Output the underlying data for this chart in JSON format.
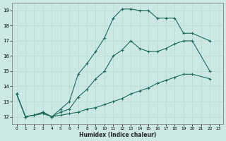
{
  "xlabel": "Humidex (Indice chaleur)",
  "bg_color": "#cce8e4",
  "grid_color": "#b8d8d4",
  "line_color": "#1a6b5a",
  "xlim": [
    -0.5,
    23.5
  ],
  "ylim": [
    11.5,
    19.5
  ],
  "xticks": [
    0,
    1,
    2,
    3,
    4,
    5,
    6,
    7,
    8,
    9,
    10,
    11,
    12,
    13,
    14,
    15,
    16,
    17,
    18,
    19,
    20,
    21,
    22,
    23
  ],
  "yticks": [
    12,
    13,
    14,
    15,
    16,
    17,
    18,
    19
  ],
  "line1_x": [
    0,
    1,
    2,
    3,
    4,
    5,
    6,
    7,
    8,
    9,
    10,
    11,
    12,
    13,
    14,
    15,
    16,
    17,
    18,
    19,
    20,
    22
  ],
  "line1_y": [
    13.5,
    12.0,
    12.1,
    12.3,
    12.0,
    12.5,
    13.0,
    14.8,
    15.5,
    16.3,
    17.2,
    18.5,
    19.1,
    19.1,
    19.0,
    19.0,
    18.5,
    18.5,
    18.5,
    17.5,
    17.5,
    17.0
  ],
  "line2_x": [
    0,
    1,
    2,
    3,
    4,
    5,
    6,
    7,
    8,
    9,
    10,
    11,
    12,
    13,
    14,
    15,
    16,
    17,
    18,
    19,
    20,
    22
  ],
  "line2_y": [
    13.5,
    12.0,
    12.1,
    12.3,
    12.0,
    12.3,
    12.5,
    13.3,
    13.8,
    14.5,
    15.0,
    16.0,
    16.4,
    17.0,
    16.5,
    16.3,
    16.3,
    16.5,
    16.8,
    17.0,
    17.0,
    15.0
  ],
  "line3_x": [
    0,
    1,
    2,
    3,
    4,
    5,
    6,
    7,
    8,
    9,
    10,
    11,
    12,
    13,
    14,
    15,
    16,
    17,
    18,
    19,
    20,
    22
  ],
  "line3_y": [
    13.5,
    12.0,
    12.1,
    12.2,
    12.0,
    12.1,
    12.2,
    12.3,
    12.5,
    12.6,
    12.8,
    13.0,
    13.2,
    13.5,
    13.7,
    13.9,
    14.2,
    14.4,
    14.6,
    14.8,
    14.8,
    14.5
  ]
}
